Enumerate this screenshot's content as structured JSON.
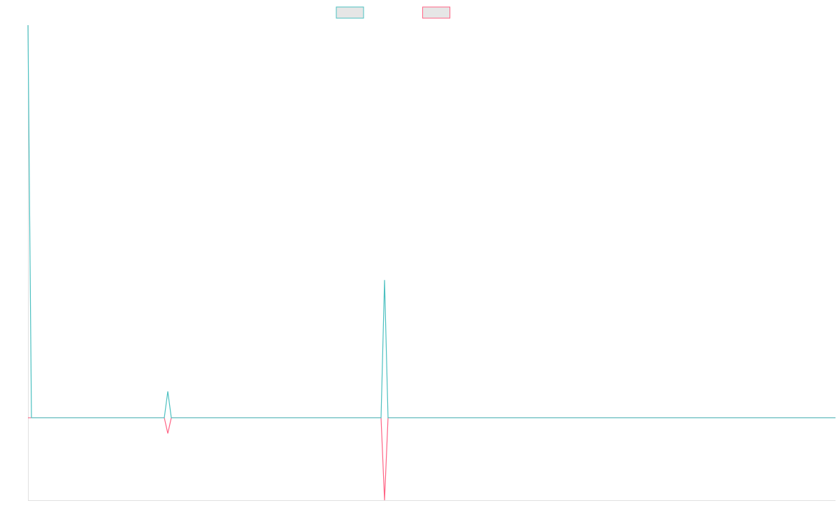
{
  "chart_data": {
    "type": "line",
    "x": [
      0,
      1,
      39,
      40,
      41,
      101,
      102,
      103,
      231
    ],
    "series": [
      {
        "color": "#4bc0c0",
        "values": [
          47.6,
          0,
          0,
          3.2,
          0,
          0,
          16.7,
          0,
          0
        ]
      },
      {
        "color": "#ff6384",
        "values": [
          0,
          0,
          0,
          -1.9,
          0,
          0,
          -10,
          0,
          0
        ]
      }
    ],
    "xlim": [
      0,
      231
    ],
    "ylim": [
      -10,
      47.6
    ],
    "legend": "top",
    "grid": false
  }
}
